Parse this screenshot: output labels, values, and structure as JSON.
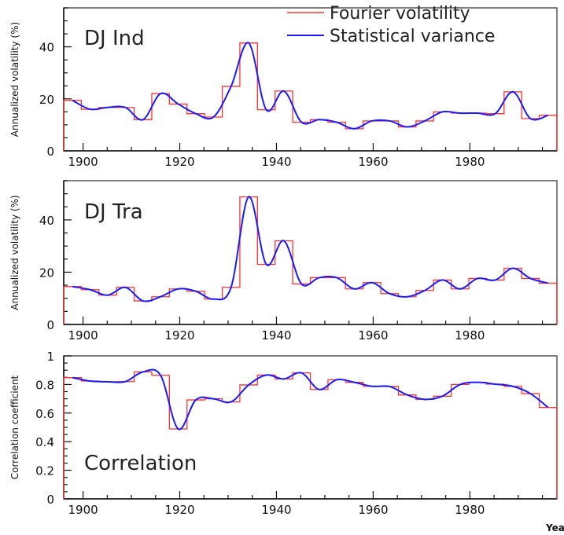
{
  "figure": {
    "xlabel": "Year",
    "legend": [
      {
        "label": "Fourier volatility",
        "color": "#ff3333",
        "style": "step"
      },
      {
        "label": "Statistical variance",
        "color": "#1a1aff",
        "style": "line"
      }
    ]
  },
  "chart_data": [
    {
      "type": "line",
      "name": "dj-ind",
      "title": "DJ Ind",
      "xlabel": "",
      "ylabel": "Annualized volatility (%)",
      "xlim": [
        1896,
        1998
      ],
      "ylim": [
        0,
        55
      ],
      "xticks": [
        1900,
        1920,
        1940,
        1960,
        1980
      ],
      "yticks": [
        0,
        20,
        40
      ],
      "bin_width_years": 3.64,
      "series": [
        {
          "name": "Fourier volatility",
          "kind": "step",
          "values": [
            19.4,
            16.0,
            16.7,
            16.7,
            12.0,
            22.0,
            18.0,
            14.3,
            13.0,
            24.8,
            41.5,
            15.8,
            23.0,
            11.0,
            12.0,
            11.0,
            8.5,
            11.5,
            11.5,
            9.2,
            11.5,
            15.0,
            14.5,
            14.5,
            14.3,
            22.7,
            12.4,
            13.7
          ]
        },
        {
          "name": "Statistical variance",
          "kind": "smooth"
        }
      ]
    },
    {
      "type": "line",
      "name": "dj-tra",
      "title": "DJ Tra",
      "xlabel": "",
      "ylabel": "Annualized volatility (%)",
      "xlim": [
        1896,
        1998
      ],
      "ylim": [
        0,
        55
      ],
      "xticks": [
        1900,
        1920,
        1940,
        1960,
        1980
      ],
      "yticks": [
        0,
        20,
        40
      ],
      "bin_width_years": 3.64,
      "series": [
        {
          "name": "Fourier volatility",
          "kind": "step",
          "values": [
            14.5,
            13.3,
            11.2,
            14.2,
            9.0,
            10.6,
            13.6,
            12.7,
            9.7,
            14.2,
            48.8,
            23.0,
            32.0,
            15.5,
            17.9,
            17.9,
            13.6,
            16.0,
            11.8,
            10.6,
            13.0,
            17.0,
            13.6,
            17.6,
            17.0,
            21.5,
            17.6,
            15.8
          ]
        },
        {
          "name": "Statistical variance",
          "kind": "smooth"
        }
      ]
    },
    {
      "type": "line",
      "name": "correlation",
      "title": "Correlation",
      "xlabel": "Year",
      "ylabel": "Correlation coefficient",
      "xlim": [
        1896,
        1998
      ],
      "ylim": [
        0,
        1
      ],
      "xticks": [
        1900,
        1920,
        1940,
        1960,
        1980
      ],
      "yticks": [
        0,
        0.2,
        0.4,
        0.6,
        0.8,
        1
      ],
      "bin_width_years": 3.64,
      "series": [
        {
          "name": "Fourier volatility",
          "kind": "step",
          "values": [
            0.848,
            0.824,
            0.819,
            0.82,
            0.888,
            0.864,
            0.489,
            0.692,
            0.7,
            0.678,
            0.797,
            0.866,
            0.839,
            0.881,
            0.765,
            0.833,
            0.815,
            0.787,
            0.786,
            0.727,
            0.696,
            0.718,
            0.8,
            0.815,
            0.802,
            0.787,
            0.736,
            0.639
          ]
        },
        {
          "name": "Statistical variance",
          "kind": "smooth"
        }
      ]
    }
  ]
}
